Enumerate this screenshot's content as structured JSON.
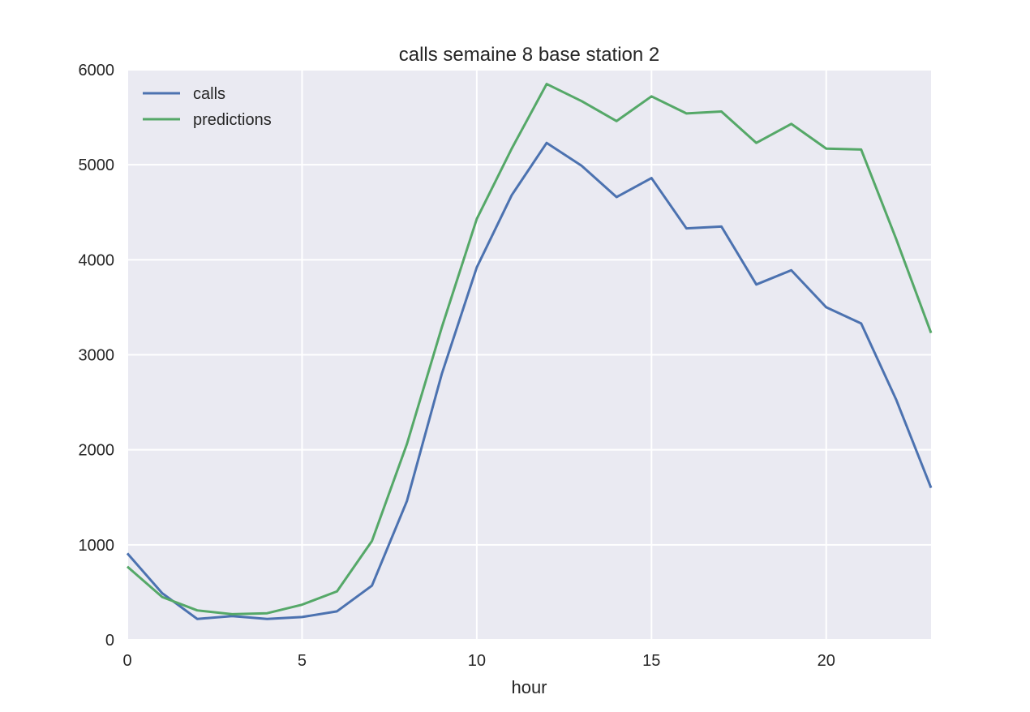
{
  "chart_data": {
    "type": "line",
    "title": "calls semaine 8 base station 2",
    "xlabel": "hour",
    "ylabel": "",
    "xlim": [
      0,
      23
    ],
    "ylim": [
      0,
      6000
    ],
    "xticks": [
      "0",
      "5",
      "10",
      "15",
      "20"
    ],
    "yticks": [
      "0",
      "1000",
      "2000",
      "3000",
      "4000",
      "5000",
      "6000"
    ],
    "grid": true,
    "legend_position": "top-left",
    "x": [
      0,
      1,
      2,
      3,
      4,
      5,
      6,
      7,
      8,
      9,
      10,
      11,
      12,
      13,
      14,
      15,
      16,
      17,
      18,
      19,
      20,
      21,
      22,
      23
    ],
    "series": [
      {
        "name": "calls",
        "color": "#4c72b0",
        "values": [
          910,
          490,
          220,
          250,
          220,
          240,
          300,
          570,
          1460,
          2800,
          3920,
          4680,
          5230,
          4990,
          4660,
          4860,
          4330,
          4350,
          3740,
          3890,
          3500,
          3330,
          2530,
          1600
        ]
      },
      {
        "name": "predictions",
        "color": "#55a868",
        "values": [
          770,
          450,
          310,
          270,
          280,
          370,
          510,
          1040,
          2060,
          3290,
          4430,
          5170,
          5850,
          5670,
          5460,
          5720,
          5540,
          5560,
          5230,
          5430,
          5170,
          5160,
          4220,
          3230
        ]
      }
    ]
  }
}
